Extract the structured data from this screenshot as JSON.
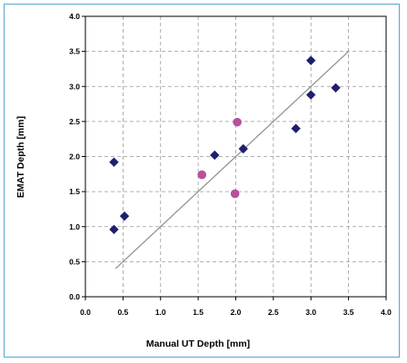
{
  "chart_data": {
    "type": "scatter",
    "xlabel": "Manual UT Depth [mm]",
    "ylabel": "EMAT Depth [mm]",
    "xlim": [
      0,
      4
    ],
    "ylim": [
      0,
      4
    ],
    "xticks": [
      "0.0",
      "0.5",
      "1.0",
      "1.5",
      "2.0",
      "2.5",
      "3.0",
      "3.5",
      "4.0"
    ],
    "yticks": [
      "0.0",
      "0.5",
      "1.0",
      "1.5",
      "2.0",
      "2.5",
      "3.0",
      "3.5",
      "4.0"
    ],
    "grid": true,
    "series": [
      {
        "marker": "diamond",
        "color": "#1f1f6e",
        "points": [
          {
            "x": 0.38,
            "y": 1.92
          },
          {
            "x": 0.38,
            "y": 0.96
          },
          {
            "x": 0.52,
            "y": 1.15
          },
          {
            "x": 1.72,
            "y": 2.02
          },
          {
            "x": 2.1,
            "y": 2.11
          },
          {
            "x": 2.8,
            "y": 2.4
          },
          {
            "x": 3.0,
            "y": 2.88
          },
          {
            "x": 3.0,
            "y": 3.37
          },
          {
            "x": 3.33,
            "y": 2.98
          }
        ]
      },
      {
        "marker": "circle",
        "color": "#b8509c",
        "points": [
          {
            "x": 1.55,
            "y": 1.74
          },
          {
            "x": 2.02,
            "y": 2.49
          },
          {
            "x": 1.99,
            "y": 1.47
          }
        ]
      }
    ],
    "reference_line": {
      "color": "#8c8c8c",
      "from": {
        "x": 0.4,
        "y": 0.4
      },
      "to": {
        "x": 3.5,
        "y": 3.5
      }
    }
  }
}
